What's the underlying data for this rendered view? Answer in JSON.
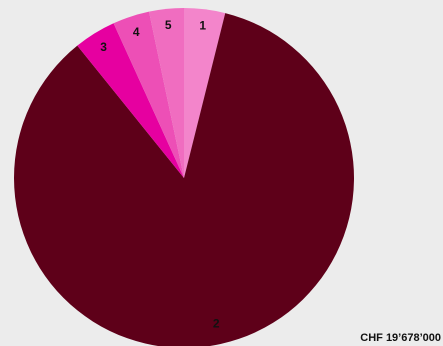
{
  "chart_data": {
    "type": "pie",
    "total_label": "CHF 19’678’000",
    "slices": [
      {
        "label": "1",
        "fraction": 0.039,
        "color": "#f385cb"
      },
      {
        "label": "2",
        "fraction": 0.853,
        "color": "#5e0019"
      },
      {
        "label": "3",
        "fraction": 0.04,
        "color": "#e600a0"
      },
      {
        "label": "4",
        "fraction": 0.035,
        "color": "#ed4fb6"
      },
      {
        "label": "5",
        "fraction": 0.033,
        "color": "#f06dc0"
      }
    ]
  }
}
